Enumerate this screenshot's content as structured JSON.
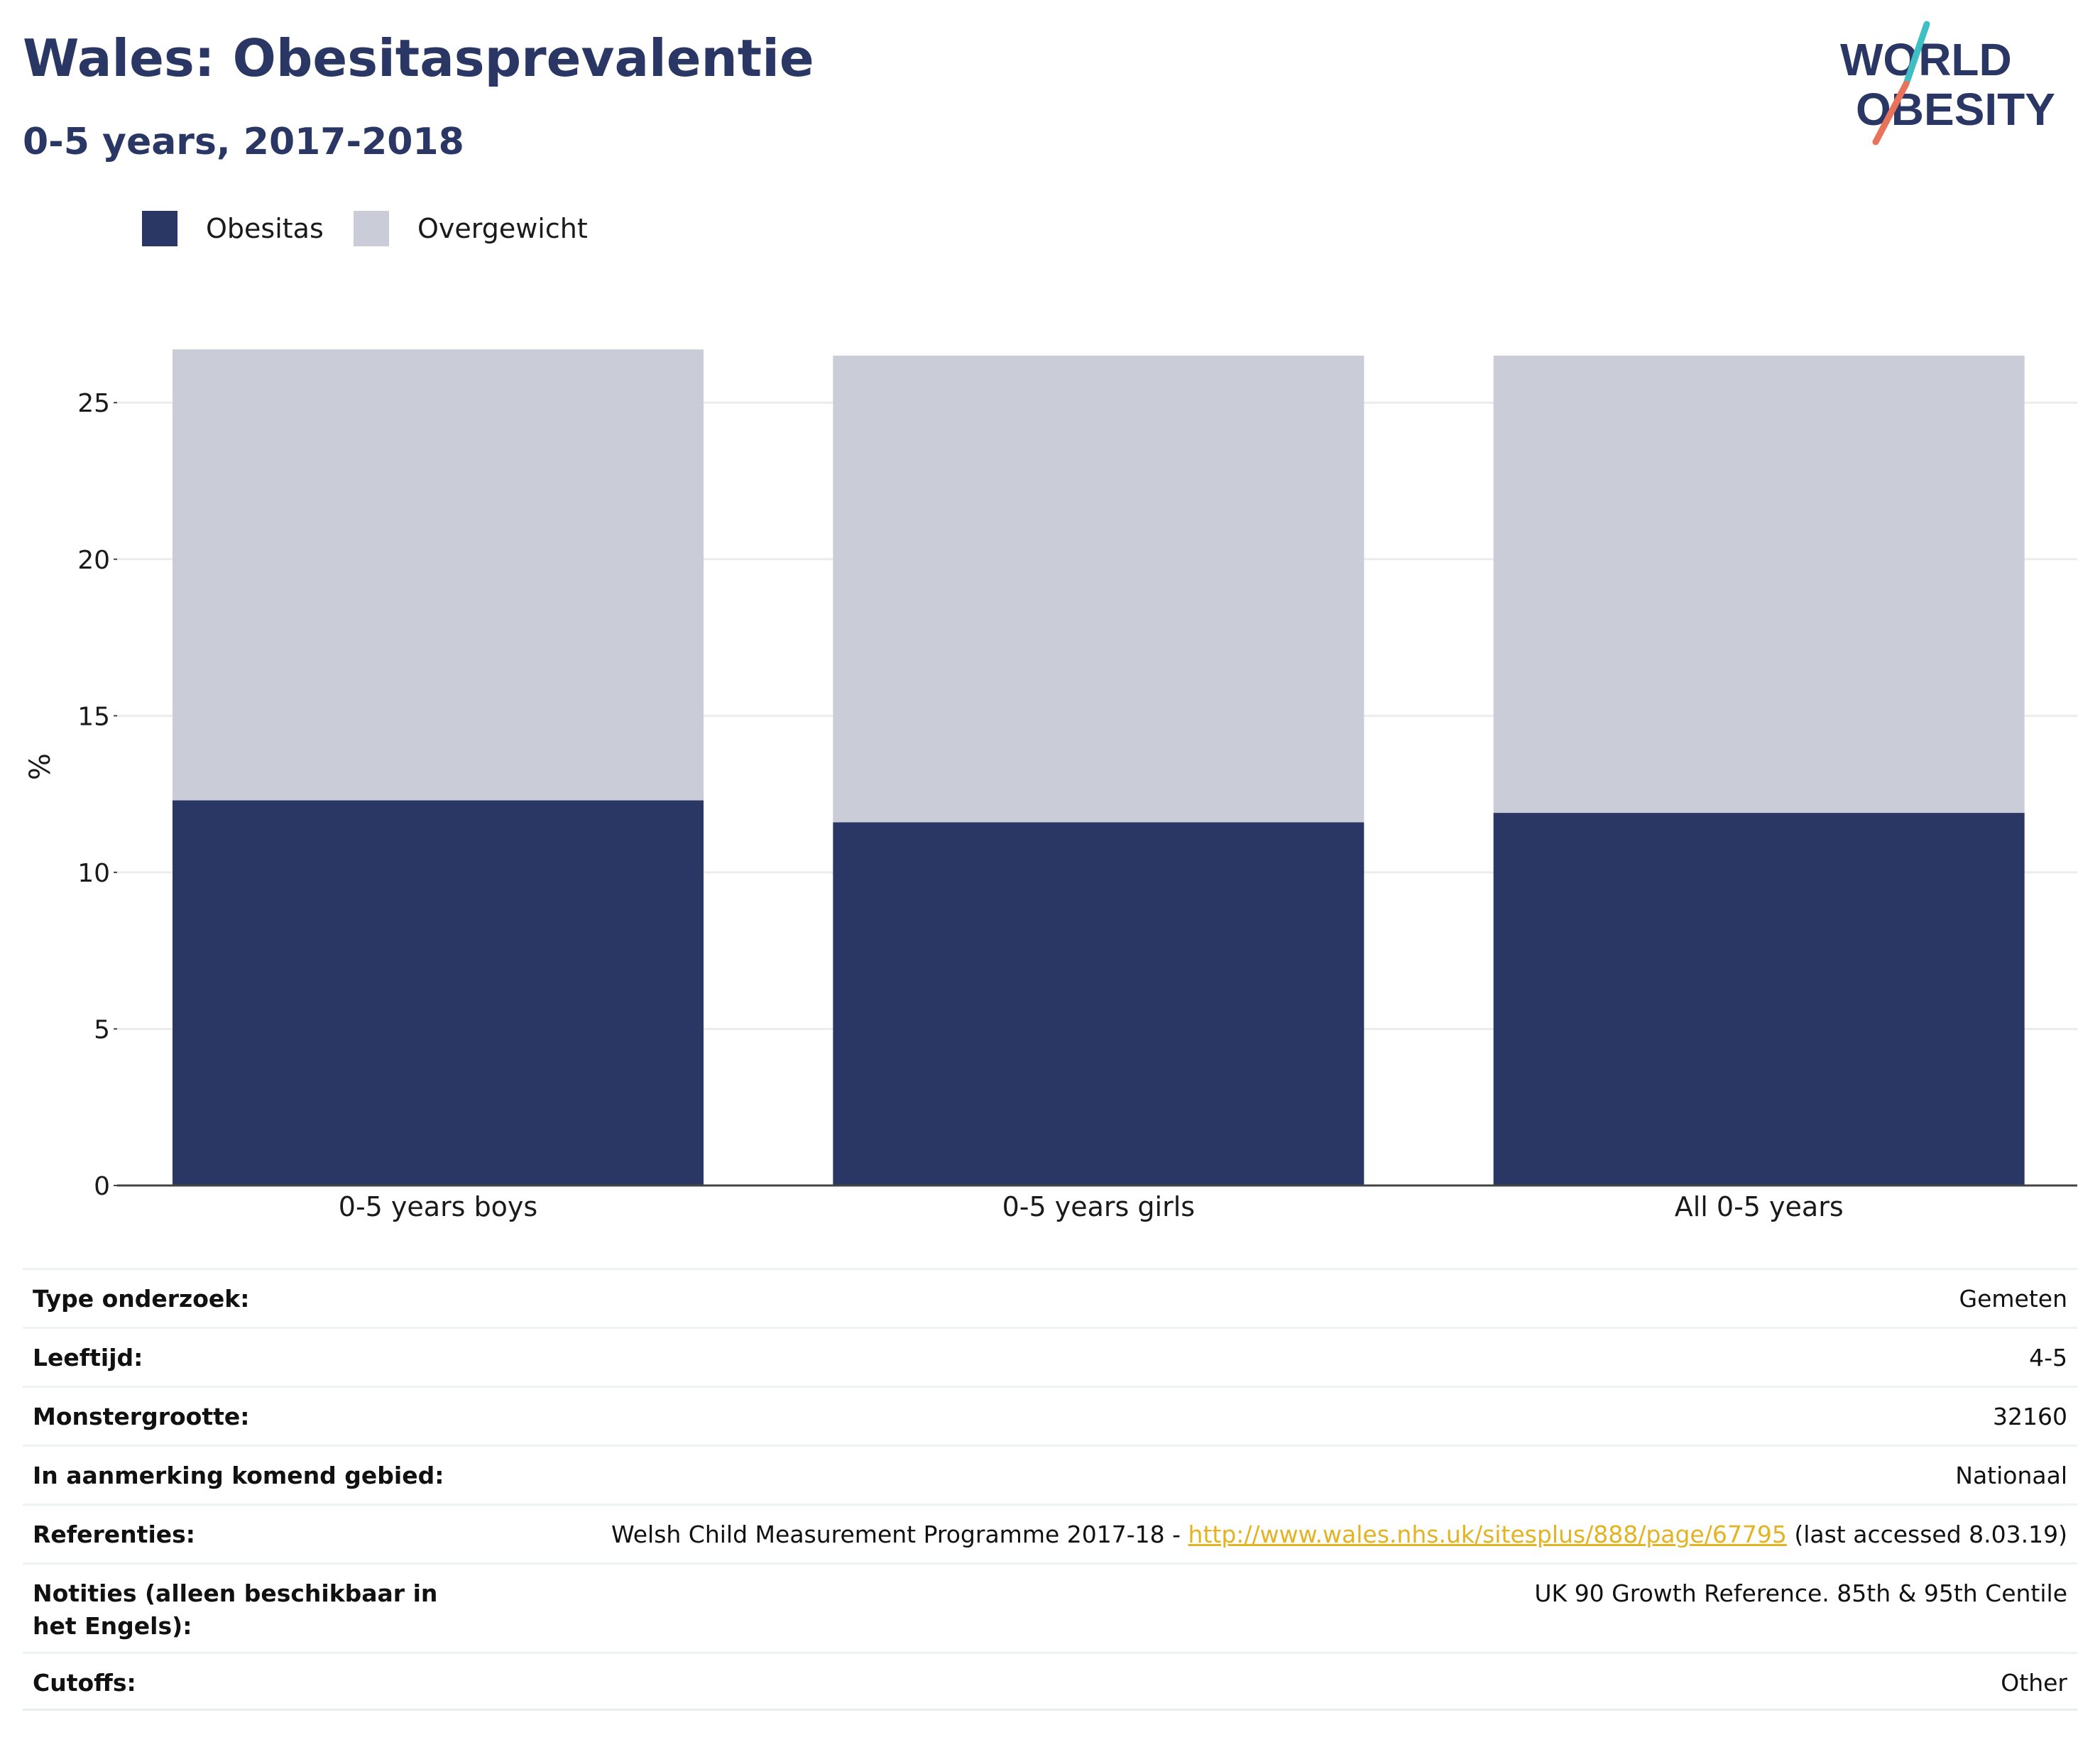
{
  "header": {
    "title": "Wales: Obesitasprevalentie",
    "subtitle": "0-5 years, 2017-2018"
  },
  "logo": {
    "line1": "WORLD",
    "line2": "OBESITY",
    "colors": {
      "text": "#2a3764",
      "slash_top": "#3fbfc4",
      "slash_bottom": "#e8735a"
    }
  },
  "legend": [
    {
      "label": "Obesitas",
      "color": "#2a3764"
    },
    {
      "label": "Overgewicht",
      "color": "#cacdd8"
    }
  ],
  "chart_data": {
    "type": "bar",
    "stacked": true,
    "categories": [
      "0-5 years boys",
      "0-5 years girls",
      "All 0-5 years"
    ],
    "series": [
      {
        "name": "Obesitas",
        "color": "#2a3764",
        "values": [
          12.3,
          11.6,
          11.9
        ]
      },
      {
        "name": "Overgewicht",
        "color": "#cacdd8",
        "values": [
          14.4,
          14.9,
          14.6
        ]
      }
    ],
    "ylabel": "%",
    "xlabel": "",
    "ylim": [
      0,
      27
    ],
    "yticks": [
      0,
      5,
      10,
      15,
      20,
      25
    ],
    "grid": true,
    "legend_position": "top-left"
  },
  "table": {
    "rows": [
      {
        "label": "Type onderzoek:",
        "value": "Gemeten"
      },
      {
        "label": "Leeftijd:",
        "value": "4-5"
      },
      {
        "label": "Monstergrootte:",
        "value": "32160"
      },
      {
        "label": "In aanmerking komend gebied:",
        "value": "Nationaal"
      },
      {
        "label": "Referenties:",
        "value_prefix": "Welsh Child Measurement Programme 2017-18 - ",
        "link": "http://www.wales.nhs.uk/sitesplus/888/page/67795",
        "value_suffix": " (last accessed 8.03.19)"
      },
      {
        "label": "Notities (alleen beschikbaar in het Engels):",
        "value": "UK 90 Growth Reference. 85th & 95th Centile"
      },
      {
        "label": "Cutoffs:",
        "value": "Other"
      }
    ]
  }
}
